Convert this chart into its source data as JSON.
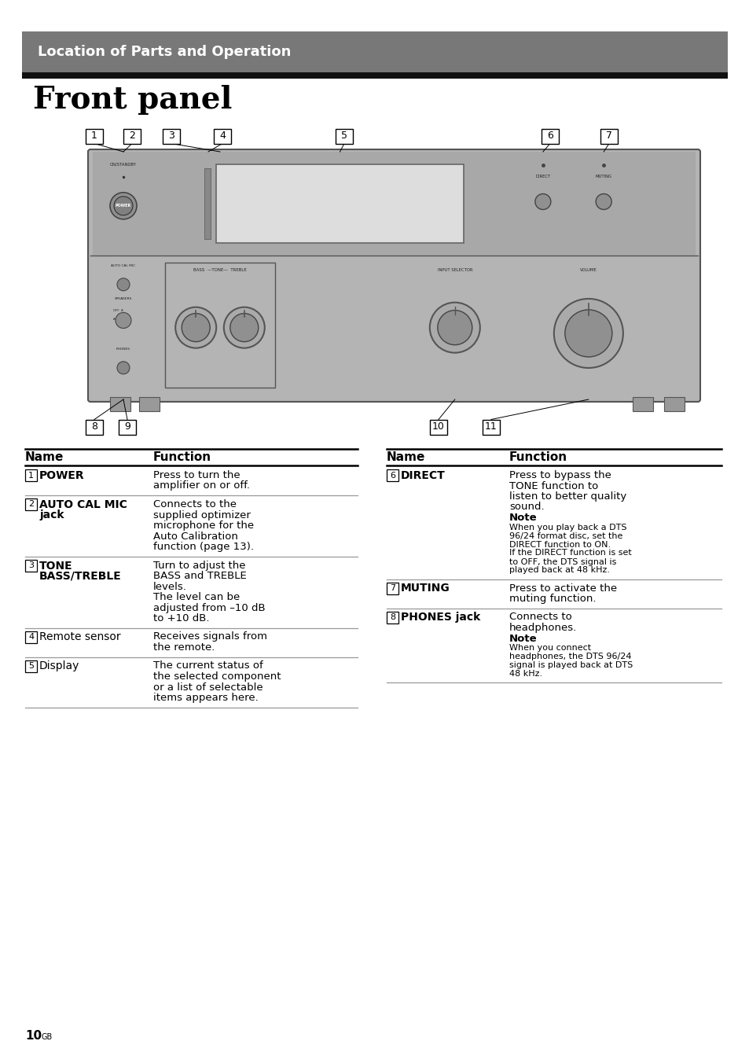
{
  "header_text": "Location of Parts and Operation",
  "header_bg": "#787878",
  "header_bar_bg": "#111111",
  "title": "Front panel",
  "page_bg": "#ffffff",
  "page_num": "10",
  "page_num_sup": "GB",
  "amp_color": "#b4b4b4",
  "amp_edge": "#555555",
  "table_left": {
    "headers": [
      "Name",
      "Function"
    ],
    "rows": [
      {
        "num": "1",
        "name": "POWER",
        "name_bold": true,
        "func_lines": [
          {
            "text": "Press to turn the",
            "bold": false,
            "small": false
          },
          {
            "text": "amplifier on or off.",
            "bold": false,
            "small": false
          }
        ]
      },
      {
        "num": "2",
        "name": "AUTO CAL MIC\njack",
        "name_bold": true,
        "func_lines": [
          {
            "text": "Connects to the",
            "bold": false,
            "small": false
          },
          {
            "text": "supplied optimizer",
            "bold": false,
            "small": false
          },
          {
            "text": "microphone for the",
            "bold": false,
            "small": false
          },
          {
            "text": "Auto Calibration",
            "bold": false,
            "small": false
          },
          {
            "text": "function (page 13).",
            "bold": false,
            "small": false
          }
        ]
      },
      {
        "num": "3",
        "name": "TONE\nBASS/TREBLE",
        "name_bold": true,
        "func_lines": [
          {
            "text": "Turn to adjust the",
            "bold": false,
            "small": false
          },
          {
            "text": "BASS and TREBLE",
            "bold": false,
            "small": false
          },
          {
            "text": "levels.",
            "bold": false,
            "small": false
          },
          {
            "text": "The level can be",
            "bold": false,
            "small": false
          },
          {
            "text": "adjusted from –10 dB",
            "bold": false,
            "small": false
          },
          {
            "text": "to +10 dB.",
            "bold": false,
            "small": false
          }
        ]
      },
      {
        "num": "4",
        "name": "Remote sensor",
        "name_bold": false,
        "func_lines": [
          {
            "text": "Receives signals from",
            "bold": false,
            "small": false
          },
          {
            "text": "the remote.",
            "bold": false,
            "small": false
          }
        ]
      },
      {
        "num": "5",
        "name": "Display",
        "name_bold": false,
        "func_lines": [
          {
            "text": "The current status of",
            "bold": false,
            "small": false
          },
          {
            "text": "the selected component",
            "bold": false,
            "small": false
          },
          {
            "text": "or a list of selectable",
            "bold": false,
            "small": false
          },
          {
            "text": "items appears here.",
            "bold": false,
            "small": false
          }
        ]
      }
    ]
  },
  "table_right": {
    "headers": [
      "Name",
      "Function"
    ],
    "rows": [
      {
        "num": "6",
        "name": "DIRECT",
        "name_bold": true,
        "func_lines": [
          {
            "text": "Press to bypass the",
            "bold": false,
            "small": false
          },
          {
            "text": "TONE function to",
            "bold": false,
            "small": false
          },
          {
            "text": "listen to better quality",
            "bold": false,
            "small": false
          },
          {
            "text": "sound.",
            "bold": false,
            "small": false
          },
          {
            "text": "Note",
            "bold": true,
            "small": false
          },
          {
            "text": "When you play back a DTS",
            "bold": false,
            "small": true
          },
          {
            "text": "96/24 format disc, set the",
            "bold": false,
            "small": true
          },
          {
            "text": "DIRECT function to ON.",
            "bold": false,
            "small": true
          },
          {
            "text": "If the DIRECT function is set",
            "bold": false,
            "small": true
          },
          {
            "text": "to OFF, the DTS signal is",
            "bold": false,
            "small": true
          },
          {
            "text": "played back at 48 kHz.",
            "bold": false,
            "small": true
          }
        ]
      },
      {
        "num": "7",
        "name": "MUTING",
        "name_bold": true,
        "func_lines": [
          {
            "text": "Press to activate the",
            "bold": false,
            "small": false
          },
          {
            "text": "muting function.",
            "bold": false,
            "small": false
          }
        ]
      },
      {
        "num": "8",
        "name": "PHONES jack",
        "name_bold": true,
        "func_lines": [
          {
            "text": "Connects to",
            "bold": false,
            "small": false
          },
          {
            "text": "headphones.",
            "bold": false,
            "small": false
          },
          {
            "text": "Note",
            "bold": true,
            "small": false
          },
          {
            "text": "When you connect",
            "bold": false,
            "small": true
          },
          {
            "text": "headphones, the DTS 96/24",
            "bold": false,
            "small": true
          },
          {
            "text": "signal is played back at DTS",
            "bold": false,
            "small": true
          },
          {
            "text": "48 kHz.",
            "bold": false,
            "small": true
          }
        ]
      }
    ]
  }
}
